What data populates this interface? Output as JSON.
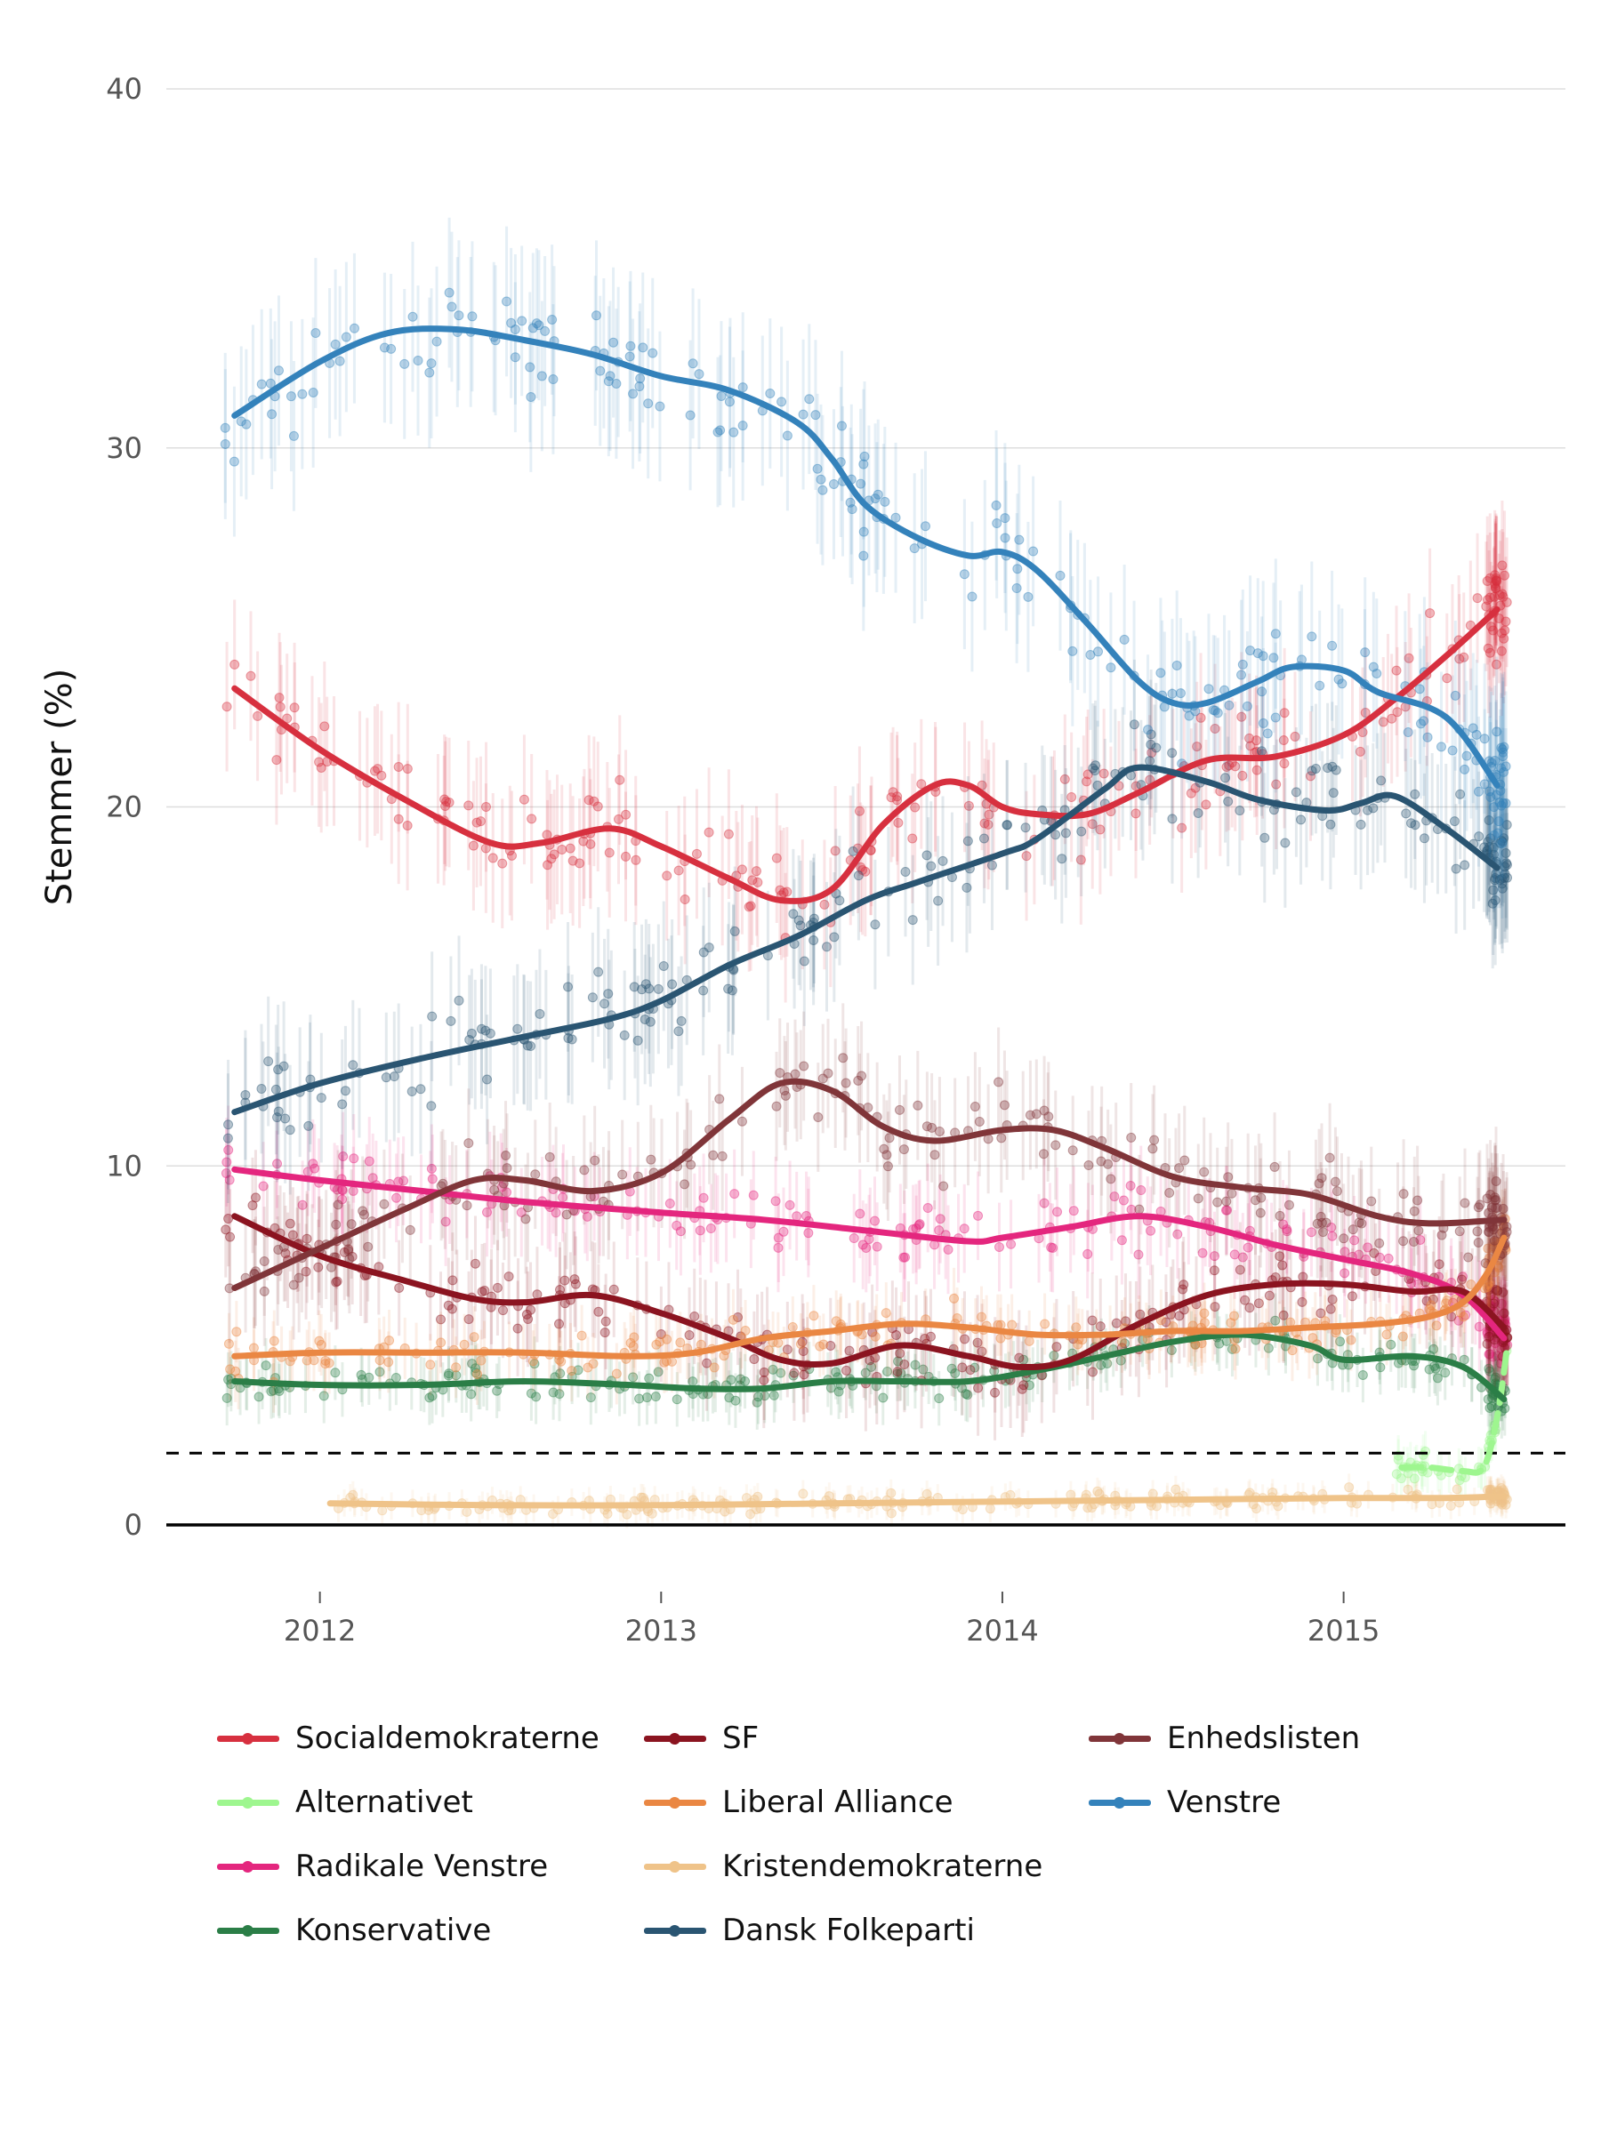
{
  "chart_data": {
    "type": "line",
    "title": "",
    "xlabel": "",
    "ylabel": "Stemmer (%)",
    "ylim": [
      0,
      40
    ],
    "yticks": [
      0,
      10,
      20,
      30,
      40
    ],
    "xlim": [
      2011.55,
      2015.65
    ],
    "xticks": [
      2012,
      2013,
      2014,
      2015
    ],
    "threshold_line": 2,
    "grid": "horizontal",
    "legend_position": "bottom",
    "series": [
      {
        "name": "Socialdemokraterne",
        "color": "#d7303f",
        "x": [
          2011.75,
          2012.0,
          2012.25,
          2012.5,
          2012.65,
          2012.85,
          2013.0,
          2013.2,
          2013.35,
          2013.5,
          2013.65,
          2013.8,
          2013.9,
          2014.0,
          2014.1,
          2014.25,
          2014.4,
          2014.6,
          2014.8,
          2015.0,
          2015.15,
          2015.3,
          2015.45
        ],
        "y": [
          23.3,
          21.6,
          20.2,
          19.0,
          19.0,
          19.4,
          18.9,
          18.0,
          17.4,
          17.7,
          19.5,
          20.6,
          20.6,
          20.0,
          19.8,
          19.8,
          20.4,
          21.3,
          21.4,
          22.0,
          23.0,
          24.2,
          25.5
        ],
        "pts_center": [
          23.3,
          21.6,
          20.2,
          19.0,
          19.0,
          19.4,
          18.9,
          18.0,
          17.4,
          17.7,
          19.5,
          20.6,
          20.6,
          20.0,
          19.8,
          19.8,
          20.4,
          21.3,
          21.4,
          22.0,
          23.0,
          24.2,
          25.5
        ],
        "pts_x_range": [
          2011.72,
          2015.48
        ],
        "spread": 1.9
      },
      {
        "name": "Alternativet",
        "color": "#9ef68f",
        "x": [
          2015.17,
          2015.25,
          2015.35,
          2015.41,
          2015.45,
          2015.48
        ],
        "y": [
          1.6,
          1.6,
          1.5,
          1.6,
          3.0,
          5.0
        ],
        "pts_center": [
          1.6,
          1.6,
          1.5,
          1.6,
          3.0,
          5.0
        ],
        "pts_x_range": [
          2015.15,
          2015.48
        ],
        "spread": 0.6
      },
      {
        "name": "Radikale Venstre",
        "color": "#e4267e",
        "x": [
          2011.75,
          2012.0,
          2012.3,
          2012.6,
          2013.0,
          2013.3,
          2013.6,
          2013.9,
          2014.0,
          2014.2,
          2014.4,
          2014.6,
          2014.8,
          2015.0,
          2015.2,
          2015.35,
          2015.47
        ],
        "y": [
          9.9,
          9.6,
          9.3,
          9.0,
          8.7,
          8.5,
          8.2,
          7.9,
          8.0,
          8.3,
          8.6,
          8.3,
          7.8,
          7.4,
          7.0,
          6.4,
          5.2
        ],
        "pts_center": [
          9.9,
          9.6,
          9.3,
          9.0,
          8.7,
          8.5,
          8.2,
          7.9,
          8.0,
          8.3,
          8.6,
          8.3,
          7.8,
          7.4,
          7.0,
          6.4,
          5.2
        ],
        "pts_x_range": [
          2011.72,
          2015.48
        ],
        "spread": 1.3
      },
      {
        "name": "Konservative",
        "color": "#2b7e47",
        "x": [
          2011.75,
          2012.0,
          2012.3,
          2012.6,
          2012.9,
          2013.1,
          2013.3,
          2013.5,
          2013.7,
          2013.9,
          2014.1,
          2014.3,
          2014.5,
          2014.7,
          2014.9,
          2015.0,
          2015.2,
          2015.35,
          2015.47
        ],
        "y": [
          4.0,
          3.9,
          3.9,
          4.0,
          3.9,
          3.8,
          3.8,
          4.0,
          4.0,
          4.0,
          4.3,
          4.7,
          5.1,
          5.3,
          5.0,
          4.6,
          4.7,
          4.4,
          3.5
        ],
        "pts_center": [
          4.0,
          3.9,
          3.9,
          4.0,
          3.9,
          3.8,
          3.8,
          4.0,
          4.0,
          4.0,
          4.3,
          4.7,
          5.1,
          5.3,
          5.0,
          4.6,
          4.7,
          4.4,
          3.5
        ],
        "pts_x_range": [
          2011.72,
          2015.48
        ],
        "spread": 0.8
      },
      {
        "name": "SF",
        "color": "#8b1420",
        "x": [
          2011.75,
          2012.0,
          2012.25,
          2012.45,
          2012.6,
          2012.8,
          2013.0,
          2013.2,
          2013.35,
          2013.5,
          2013.7,
          2013.9,
          2014.05,
          2014.2,
          2014.4,
          2014.6,
          2014.8,
          2015.0,
          2015.2,
          2015.35,
          2015.47
        ],
        "y": [
          8.6,
          7.5,
          6.8,
          6.3,
          6.2,
          6.4,
          5.9,
          5.2,
          4.6,
          4.5,
          5.0,
          4.7,
          4.4,
          4.6,
          5.6,
          6.4,
          6.7,
          6.7,
          6.5,
          6.5,
          5.5
        ],
        "pts_center": [
          8.6,
          7.5,
          6.8,
          6.3,
          6.2,
          6.4,
          5.9,
          5.2,
          4.6,
          4.5,
          5.0,
          4.7,
          4.4,
          4.6,
          5.6,
          6.4,
          6.7,
          6.7,
          6.5,
          6.5,
          5.5
        ],
        "pts_x_range": [
          2011.72,
          2015.48
        ],
        "spread": 1.4
      },
      {
        "name": "Liberal Alliance",
        "color": "#ea8743",
        "x": [
          2011.75,
          2012.0,
          2012.3,
          2012.6,
          2012.9,
          2013.1,
          2013.3,
          2013.5,
          2013.7,
          2013.9,
          2014.1,
          2014.3,
          2014.5,
          2014.7,
          2014.9,
          2015.1,
          2015.25,
          2015.35,
          2015.42,
          2015.47
        ],
        "y": [
          4.7,
          4.8,
          4.8,
          4.8,
          4.7,
          4.8,
          5.2,
          5.4,
          5.6,
          5.5,
          5.3,
          5.3,
          5.4,
          5.4,
          5.5,
          5.6,
          5.8,
          6.2,
          7.0,
          8.0
        ],
        "pts_center": [
          4.7,
          4.8,
          4.8,
          4.8,
          4.7,
          4.8,
          5.2,
          5.4,
          5.6,
          5.5,
          5.3,
          5.3,
          5.4,
          5.4,
          5.5,
          5.6,
          5.8,
          6.2,
          7.0,
          8.0
        ],
        "pts_x_range": [
          2011.72,
          2015.48
        ],
        "spread": 0.9
      },
      {
        "name": "Kristendemokraterne",
        "color": "#efc389",
        "x": [
          2012.03,
          2012.5,
          2013.0,
          2013.5,
          2014.0,
          2014.5,
          2015.0,
          2015.3,
          2015.47
        ],
        "y": [
          0.6,
          0.55,
          0.55,
          0.6,
          0.65,
          0.7,
          0.75,
          0.75,
          0.8
        ],
        "pts_center": [
          0.6,
          0.55,
          0.55,
          0.6,
          0.65,
          0.7,
          0.75,
          0.75,
          0.8
        ],
        "pts_x_range": [
          2012.02,
          2015.48
        ],
        "spread": 0.4
      },
      {
        "name": "Dansk Folkeparti",
        "color": "#2a5572",
        "x": [
          2011.75,
          2012.0,
          2012.3,
          2012.6,
          2012.85,
          2013.0,
          2013.2,
          2013.4,
          2013.6,
          2013.75,
          2014.0,
          2014.1,
          2014.3,
          2014.4,
          2014.6,
          2014.75,
          2014.95,
          2015.05,
          2015.15,
          2015.3,
          2015.45
        ],
        "y": [
          11.5,
          12.3,
          13.0,
          13.6,
          14.1,
          14.6,
          15.6,
          16.4,
          17.4,
          17.9,
          18.7,
          19.1,
          20.5,
          21.1,
          20.7,
          20.2,
          19.9,
          20.1,
          20.3,
          19.4,
          18.3
        ],
        "pts_center": [
          11.5,
          12.3,
          13.0,
          13.6,
          14.1,
          14.6,
          15.6,
          16.4,
          17.4,
          17.9,
          18.7,
          19.1,
          20.5,
          21.1,
          20.7,
          20.2,
          19.9,
          20.1,
          20.3,
          19.4,
          18.3
        ],
        "pts_x_range": [
          2011.72,
          2015.48
        ],
        "spread": 1.9
      },
      {
        "name": "Enhedslisten",
        "color": "#803539",
        "x": [
          2011.75,
          2012.0,
          2012.25,
          2012.45,
          2012.6,
          2012.8,
          2013.0,
          2013.2,
          2013.35,
          2013.5,
          2013.65,
          2013.8,
          2014.0,
          2014.15,
          2014.3,
          2014.5,
          2014.7,
          2014.9,
          2015.1,
          2015.25,
          2015.47
        ],
        "y": [
          6.6,
          7.7,
          8.8,
          9.6,
          9.6,
          9.3,
          9.8,
          11.3,
          12.3,
          12.1,
          11.1,
          10.7,
          11.0,
          11.0,
          10.5,
          9.7,
          9.4,
          9.2,
          8.6,
          8.4,
          8.5
        ],
        "pts_center": [
          6.6,
          7.7,
          8.8,
          9.6,
          9.6,
          9.3,
          9.8,
          11.3,
          12.3,
          12.1,
          11.1,
          10.7,
          11.0,
          11.0,
          10.5,
          9.7,
          9.4,
          9.2,
          8.6,
          8.4,
          8.5
        ],
        "pts_x_range": [
          2011.72,
          2015.48
        ],
        "spread": 1.6
      },
      {
        "name": "Venstre",
        "color": "#3482bb",
        "x": [
          2011.75,
          2012.0,
          2012.2,
          2012.4,
          2012.6,
          2012.8,
          2013.0,
          2013.2,
          2013.4,
          2013.5,
          2013.6,
          2013.75,
          2013.9,
          2014.0,
          2014.1,
          2014.25,
          2014.4,
          2014.5,
          2014.6,
          2014.75,
          2014.85,
          2015.0,
          2015.1,
          2015.3,
          2015.45
        ],
        "y": [
          30.9,
          32.4,
          33.2,
          33.3,
          33.0,
          32.6,
          32.0,
          31.6,
          30.7,
          29.7,
          28.4,
          27.5,
          27.0,
          27.1,
          26.6,
          25.1,
          23.5,
          22.9,
          22.9,
          23.5,
          23.9,
          23.8,
          23.2,
          22.5,
          20.6
        ],
        "pts_center": [
          30.9,
          32.4,
          33.2,
          33.3,
          33.0,
          32.6,
          32.0,
          31.6,
          30.7,
          29.7,
          28.4,
          27.5,
          27.0,
          27.1,
          26.6,
          25.1,
          23.5,
          22.9,
          22.9,
          23.5,
          23.9,
          23.8,
          23.2,
          22.5,
          20.6
        ],
        "pts_x_range": [
          2011.72,
          2015.48
        ],
        "spread": 2.2
      }
    ]
  },
  "legend": {
    "items": [
      {
        "label": "Socialdemokraterne",
        "color": "#d7303f"
      },
      {
        "label": "SF",
        "color": "#8b1420"
      },
      {
        "label": "Enhedslisten",
        "color": "#803539"
      },
      {
        "label": "Alternativet",
        "color": "#9ef68f"
      },
      {
        "label": "Liberal Alliance",
        "color": "#ea8743"
      },
      {
        "label": "Venstre",
        "color": "#3482bb"
      },
      {
        "label": "Radikale Venstre",
        "color": "#e4267e"
      },
      {
        "label": "Kristendemokraterne",
        "color": "#efc389"
      },
      {
        "label": "Konservative",
        "color": "#2b7e47"
      },
      {
        "label": "Dansk Folkeparti",
        "color": "#2a5572"
      }
    ]
  }
}
